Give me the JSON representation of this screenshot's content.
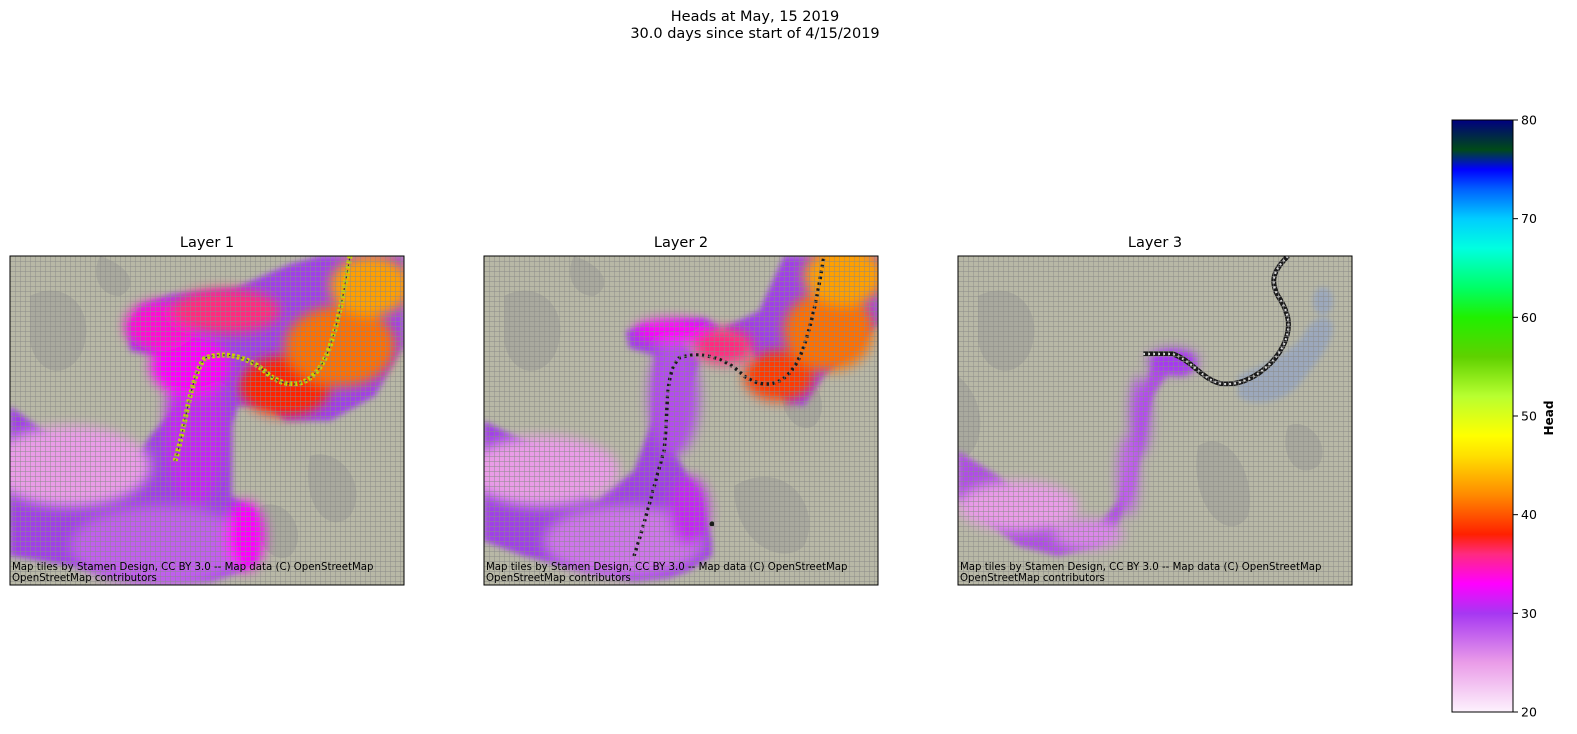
{
  "figure": {
    "suptitle_line1": "Heads at May, 15 2019",
    "suptitle_line2": "30.0 days since start of 4/15/2019"
  },
  "colors": {
    "basemap": "#b8b8a6",
    "grid_line": "#8a8a88",
    "terrain": "#a2a29a",
    "river_marker": "#1a1a1a",
    "layer1_river_line": "#c8d400",
    "layer3_water": "#9aa7bf"
  },
  "colorbar": {
    "label": "Head",
    "range": [
      20,
      80
    ],
    "ticks": [
      20,
      30,
      40,
      50,
      60,
      70,
      80
    ],
    "tick_labels": [
      "20",
      "30",
      "40",
      "50",
      "60",
      "70",
      "80"
    ],
    "colormap": "gist_ncar_r",
    "stops": [
      [
        20,
        "#fdf2fd"
      ],
      [
        25,
        "#ea9ce8"
      ],
      [
        30,
        "#a637f2"
      ],
      [
        33,
        "#ff00ff"
      ],
      [
        36,
        "#ff2a80"
      ],
      [
        38,
        "#ff2000"
      ],
      [
        42,
        "#ff8a00"
      ],
      [
        46,
        "#ffe000"
      ],
      [
        48,
        "#ffff00"
      ],
      [
        52,
        "#b8ff30"
      ],
      [
        56,
        "#5fd100"
      ],
      [
        60,
        "#20f000"
      ],
      [
        63,
        "#00ff66"
      ],
      [
        67,
        "#00ffe0"
      ],
      [
        70,
        "#00cdff"
      ],
      [
        73,
        "#0060ff"
      ],
      [
        75,
        "#0000ff"
      ],
      [
        77,
        "#004a18"
      ],
      [
        80,
        "#000080"
      ]
    ]
  },
  "chart_data": [
    {
      "type": "heatmap",
      "title": "Layer 1",
      "attribution_line1": "Map tiles by Stamen Design, CC BY 3.0 -- Map data (C) OpenStreetMap",
      "attribution_line2": "OpenStreetMap contributors",
      "value_range_shown": [
        27,
        44
      ],
      "river_cells": "olive line along channel",
      "grid": true
    },
    {
      "type": "heatmap",
      "title": "Layer 2",
      "attribution_line1": "Map tiles by Stamen Design, CC BY 3.0 -- Map data (C) OpenStreetMap",
      "attribution_line2": "OpenStreetMap contributors",
      "value_range_shown": [
        26,
        44
      ],
      "river_cells": "dark markers along channel",
      "grid": true
    },
    {
      "type": "heatmap",
      "title": "Layer 3",
      "attribution_line1": "Map tiles by Stamen Design, CC BY 3.0 -- Map data (C) OpenStreetMap",
      "attribution_line2": "OpenStreetMap contributors",
      "value_range_shown": [
        24,
        32
      ],
      "river_cells": "dark square markers along channel",
      "grid": true
    }
  ]
}
